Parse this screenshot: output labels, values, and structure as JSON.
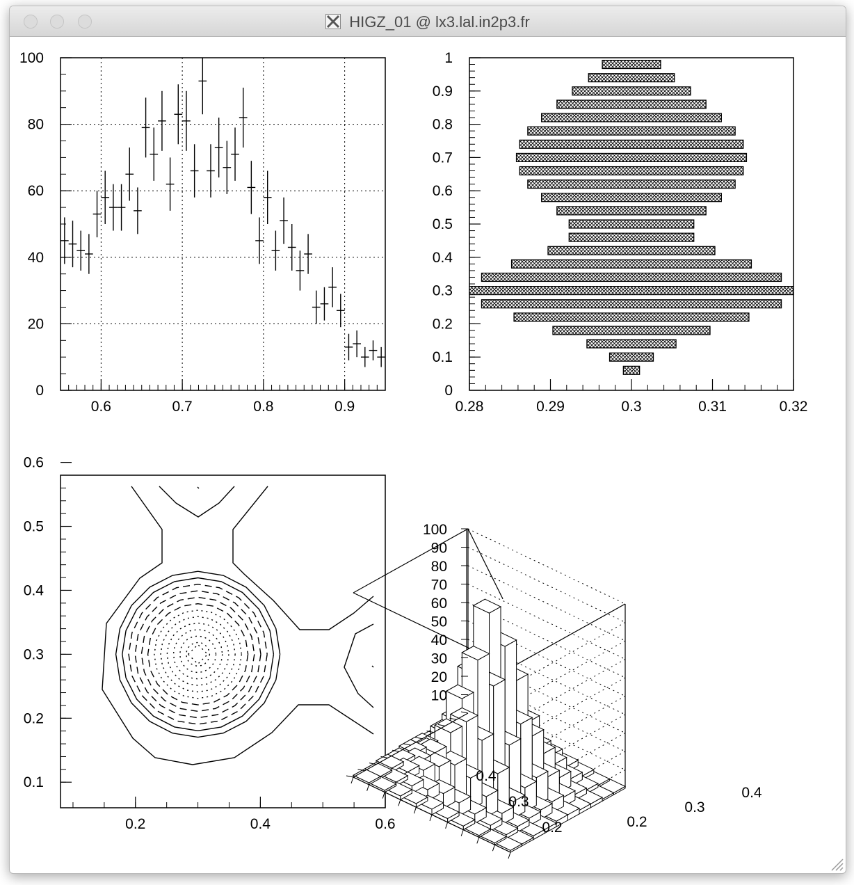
{
  "window": {
    "title": "HIGZ_01 @ lx3.lal.in2p3.fr"
  },
  "chart_data": [
    {
      "type": "scatter",
      "title": "",
      "xlabel": "",
      "ylabel": "",
      "xlim": [
        0.55,
        0.95
      ],
      "ylim": [
        0,
        100
      ],
      "xticks": [
        "0.6",
        "0.7",
        "0.8",
        "0.9"
      ],
      "yticks": [
        "0",
        "20",
        "40",
        "60",
        "80",
        "100"
      ],
      "grid": true,
      "x": [
        0.555,
        0.565,
        0.575,
        0.585,
        0.595,
        0.605,
        0.615,
        0.625,
        0.635,
        0.645,
        0.655,
        0.665,
        0.675,
        0.685,
        0.695,
        0.705,
        0.715,
        0.725,
        0.735,
        0.745,
        0.755,
        0.765,
        0.775,
        0.785,
        0.795,
        0.805,
        0.815,
        0.825,
        0.835,
        0.845,
        0.855,
        0.865,
        0.875,
        0.885,
        0.895,
        0.905,
        0.915,
        0.925,
        0.935,
        0.945
      ],
      "y": [
        45,
        44,
        42,
        41,
        53,
        58,
        55,
        55,
        65,
        54,
        79,
        71,
        81,
        62,
        83,
        81,
        66,
        93,
        66,
        73,
        67,
        71,
        82,
        61,
        45,
        58,
        42,
        51,
        43,
        36,
        41,
        25,
        26,
        31,
        24,
        13,
        14,
        10,
        12,
        10
      ],
      "yerr": [
        7,
        7,
        6,
        6,
        7,
        8,
        7,
        7,
        8,
        7,
        9,
        8,
        9,
        8,
        9,
        9,
        8,
        10,
        8,
        9,
        8,
        8,
        9,
        8,
        7,
        8,
        6,
        7,
        7,
        6,
        6,
        5,
        5,
        6,
        5,
        4,
        4,
        3,
        3,
        3
      ]
    },
    {
      "type": "box",
      "title": "",
      "xlim": [
        0.28,
        0.32
      ],
      "ylim": [
        0,
        1
      ],
      "xticks": [
        "0.28",
        "0.29",
        "0.3",
        "0.31",
        "0.32"
      ],
      "yticks": [
        "0",
        "0.1",
        "0.2",
        "0.3",
        "0.4",
        "0.5",
        "0.6",
        "0.7",
        "0.8",
        "0.9",
        "1"
      ],
      "center_x": 0.3,
      "y": [
        0.06,
        0.1,
        0.14,
        0.18,
        0.22,
        0.26,
        0.3,
        0.34,
        0.38,
        0.42,
        0.46,
        0.5,
        0.54,
        0.58,
        0.62,
        0.66,
        0.7,
        0.74,
        0.78,
        0.82,
        0.86,
        0.9,
        0.94,
        0.98
      ],
      "half_width": [
        0.001,
        0.0027,
        0.0055,
        0.0097,
        0.0145,
        0.0185,
        0.02,
        0.0185,
        0.0148,
        0.0103,
        0.0077,
        0.0077,
        0.0092,
        0.0111,
        0.0128,
        0.0138,
        0.0142,
        0.0138,
        0.0128,
        0.0111,
        0.0092,
        0.0073,
        0.0053,
        0.0036
      ]
    },
    {
      "type": "contour",
      "title": "",
      "xlim": [
        0.08,
        0.6
      ],
      "ylim": [
        0.06,
        0.58
      ],
      "xticks": [
        "0.2",
        "0.4",
        "0.6"
      ],
      "yticks": [
        "0.1",
        "0.2",
        "0.3",
        "0.4",
        "0.5",
        "0.6"
      ],
      "peak": [
        0.3,
        0.3
      ],
      "levels_solid": 2,
      "levels_dashed": 4,
      "levels_dotted": 6
    },
    {
      "type": "lego",
      "title": "",
      "zlim": [
        0,
        100
      ],
      "zticks": [
        "10",
        "20",
        "30",
        "40",
        "50",
        "60",
        "70",
        "80",
        "90",
        "100"
      ],
      "xticks": [
        "0.2",
        "0.3",
        "0.4"
      ],
      "yticks": [
        "0.2",
        "0.3",
        "0.4"
      ],
      "heights": [
        [
          1,
          1,
          2,
          2,
          3,
          2,
          2,
          1,
          1,
          1
        ],
        [
          1,
          2,
          4,
          6,
          8,
          7,
          5,
          3,
          2,
          1
        ],
        [
          2,
          4,
          9,
          15,
          20,
          17,
          11,
          6,
          3,
          2
        ],
        [
          2,
          6,
          15,
          30,
          40,
          34,
          20,
          9,
          4,
          2
        ],
        [
          3,
          8,
          22,
          45,
          70,
          60,
          32,
          13,
          5,
          3
        ],
        [
          3,
          9,
          25,
          55,
          92,
          78,
          40,
          15,
          6,
          3
        ],
        [
          2,
          7,
          20,
          42,
          66,
          56,
          30,
          12,
          5,
          2
        ],
        [
          2,
          5,
          12,
          24,
          34,
          30,
          17,
          8,
          3,
          2
        ],
        [
          1,
          3,
          6,
          11,
          15,
          13,
          8,
          4,
          2,
          1
        ],
        [
          1,
          1,
          3,
          4,
          6,
          5,
          3,
          2,
          1,
          1
        ]
      ]
    }
  ]
}
